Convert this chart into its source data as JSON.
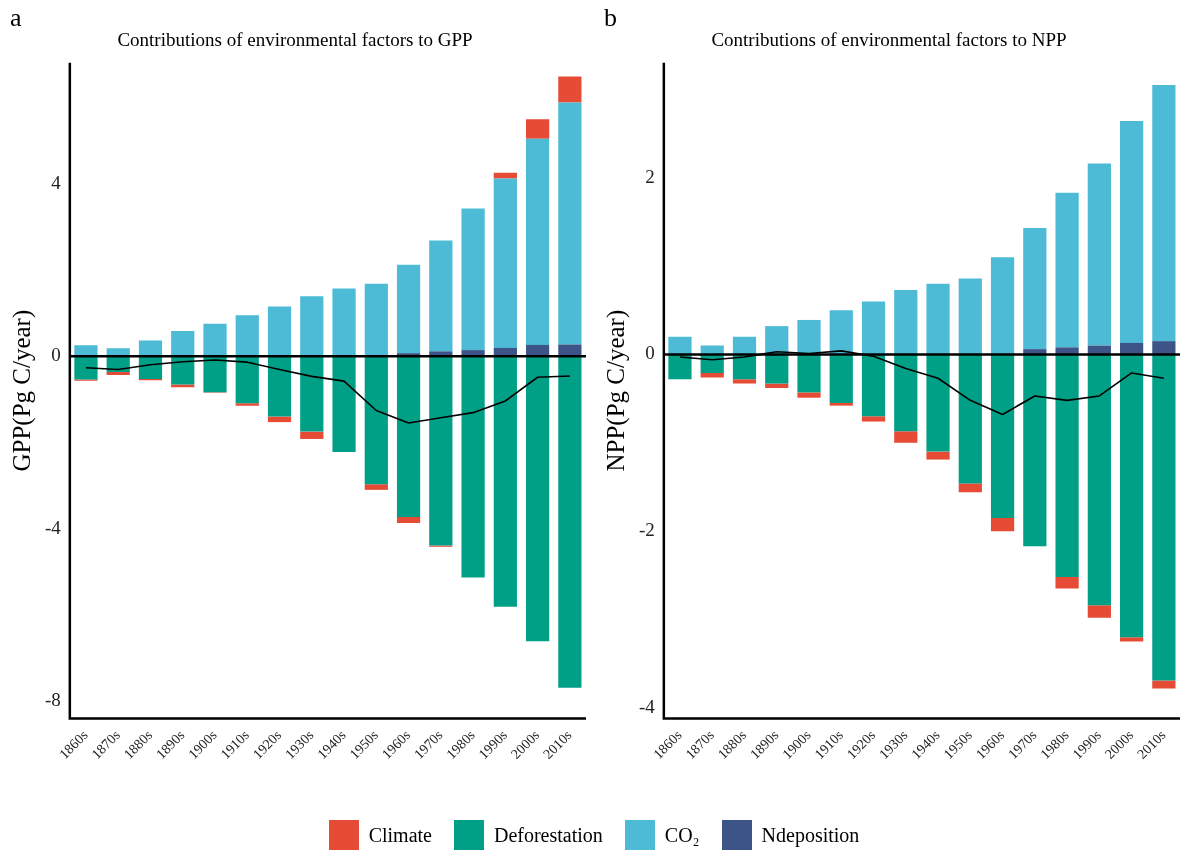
{
  "chart_data": [
    {
      "type": "bar",
      "title": "Contributions of environmental factors to GPP",
      "ylabel": "GPP(Pg C/year)",
      "annotations": [
        "a"
      ],
      "categories": [
        "1860s",
        "1870s",
        "1880s",
        "1890s",
        "1900s",
        "1910s",
        "1920s",
        "1930s",
        "1940s",
        "1950s",
        "1960s",
        "1970s",
        "1980s",
        "1990s",
        "2000s",
        "2010s"
      ],
      "stacked": true,
      "ylim": [
        -8.4,
        6.8
      ],
      "yticks": [
        -8,
        -4,
        0,
        4
      ],
      "grid": false,
      "legend": "bottom",
      "marker": "none",
      "ref_lines": [
        {
          "axis": "y",
          "value": 0,
          "color": "#000000"
        }
      ],
      "series": [
        {
          "name": "Ndeposition",
          "color": "#3c5488",
          "values": [
            0,
            0,
            0,
            0,
            0,
            0,
            0,
            0,
            0,
            0,
            0.07,
            0.11,
            0.14,
            0.19,
            0.26,
            0.27
          ]
        },
        {
          "name": "CO₂",
          "color": "#4dbbd5",
          "values": [
            0.25,
            0.18,
            0.36,
            0.58,
            0.75,
            0.95,
            1.15,
            1.39,
            1.57,
            1.68,
            2.05,
            2.57,
            3.28,
            3.93,
            4.78,
            5.61
          ]
        },
        {
          "name": "Deforestation",
          "color": "#00a087",
          "values": [
            -0.54,
            -0.37,
            -0.53,
            -0.66,
            -0.84,
            -1.09,
            -1.4,
            -1.75,
            -2.22,
            -2.97,
            -3.73,
            -4.39,
            -5.13,
            -5.81,
            -6.61,
            -7.69
          ]
        },
        {
          "name": "Climate",
          "color": "#e64b35",
          "values": [
            -0.03,
            -0.07,
            -0.03,
            -0.06,
            -0.01,
            -0.06,
            -0.13,
            -0.17,
            0,
            -0.13,
            -0.14,
            -0.03,
            null,
            0.13,
            0.45,
            0.6
          ]
        },
        {
          "type": "line",
          "color": "#000000",
          "values": [
            -0.27,
            -0.31,
            -0.2,
            -0.13,
            -0.09,
            -0.14,
            -0.31,
            -0.47,
            -0.58,
            -1.26,
            -1.55,
            -1.43,
            -1.31,
            -1.04,
            -0.49,
            -0.46
          ]
        }
      ]
    },
    {
      "type": "bar",
      "title": "Contributions of environmental factors to NPP",
      "ylabel": "NPP(Pg C/year)",
      "annotations": [
        "b"
      ],
      "categories": [
        "1860s",
        "1870s",
        "1880s",
        "1890s",
        "1900s",
        "1910s",
        "1920s",
        "1930s",
        "1940s",
        "1950s",
        "1960s",
        "1970s",
        "1980s",
        "1990s",
        "2000s",
        "2010s"
      ],
      "stacked": true,
      "ylim": [
        -4.12,
        3.3
      ],
      "yticks": [
        -4,
        -2,
        0,
        2
      ],
      "grid": false,
      "legend": "bottom",
      "marker": "none",
      "ref_lines": [
        {
          "axis": "y",
          "value": 0,
          "color": "#000000"
        }
      ],
      "series": [
        {
          "name": "Ndeposition",
          "color": "#3c5488",
          "values": [
            0,
            0,
            0,
            0,
            0,
            0,
            0,
            0,
            0,
            0,
            null,
            0.06,
            0.08,
            0.1,
            0.13,
            0.15
          ]
        },
        {
          "name": "CO₂",
          "color": "#4dbbd5",
          "values": [
            0.2,
            0.1,
            0.2,
            0.32,
            0.39,
            0.5,
            0.6,
            0.73,
            0.8,
            0.86,
            1.1,
            1.37,
            1.75,
            2.06,
            2.51,
            2.9
          ]
        },
        {
          "name": "Deforestation",
          "color": "#00a087",
          "values": [
            -0.28,
            -0.21,
            -0.28,
            -0.33,
            -0.43,
            -0.55,
            -0.7,
            -0.87,
            -1.1,
            -1.46,
            -1.85,
            -2.17,
            -2.52,
            -2.84,
            -3.2,
            -3.69
          ]
        },
        {
          "name": "Climate",
          "color": "#e64b35",
          "values": [
            0,
            -0.05,
            -0.05,
            -0.05,
            -0.06,
            -0.03,
            -0.06,
            -0.13,
            -0.09,
            -0.1,
            -0.15,
            0,
            -0.13,
            -0.14,
            -0.05,
            -0.09
          ]
        },
        {
          "type": "line",
          "color": "#000000",
          "values": [
            -0.03,
            -0.06,
            -0.03,
            0.03,
            0.01,
            0.04,
            -0.02,
            -0.16,
            -0.27,
            -0.52,
            -0.68,
            -0.47,
            -0.52,
            -0.47,
            -0.21,
            -0.27
          ]
        }
      ]
    }
  ]
}
